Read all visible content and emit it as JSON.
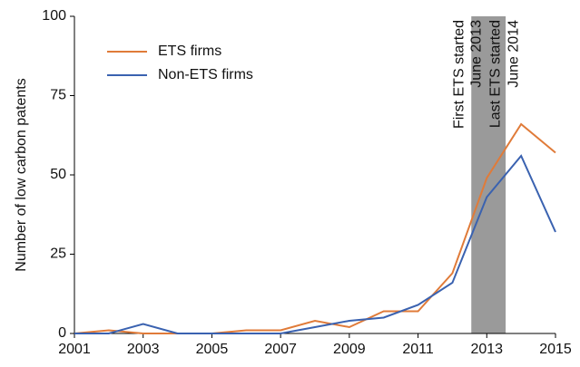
{
  "chart_data": {
    "type": "line",
    "y_label": "Number of low carbon patents",
    "x": [
      2001,
      2002,
      2003,
      2004,
      2005,
      2006,
      2007,
      2008,
      2009,
      2010,
      2011,
      2012,
      2013,
      2014,
      2015
    ],
    "series": [
      {
        "name": "ETS firms",
        "color": "#e07b39",
        "values": [
          0,
          1,
          0,
          0,
          0,
          1,
          1,
          4,
          2,
          7,
          7,
          19,
          49,
          66,
          57
        ]
      },
      {
        "name": "Non-ETS firms",
        "color": "#3a62b0",
        "values": [
          0,
          0,
          3,
          0,
          0,
          0,
          0,
          2,
          4,
          5,
          9,
          16,
          43,
          56,
          32
        ]
      }
    ],
    "xlim": [
      2001,
      2015
    ],
    "xticks": [
      2001,
      2003,
      2005,
      2007,
      2009,
      2011,
      2013,
      2015
    ],
    "ylim": [
      0,
      100
    ],
    "yticks": [
      0,
      25,
      50,
      75,
      100
    ],
    "shaded_span": [
      2012.55,
      2013.55
    ],
    "shade_color": "#9a9a9a",
    "annotations": [
      {
        "lines": [
          "First ETS started",
          "June 2013"
        ]
      },
      {
        "lines": [
          "Last ETS started",
          "June 2014"
        ]
      }
    ],
    "legend": "upper left"
  }
}
